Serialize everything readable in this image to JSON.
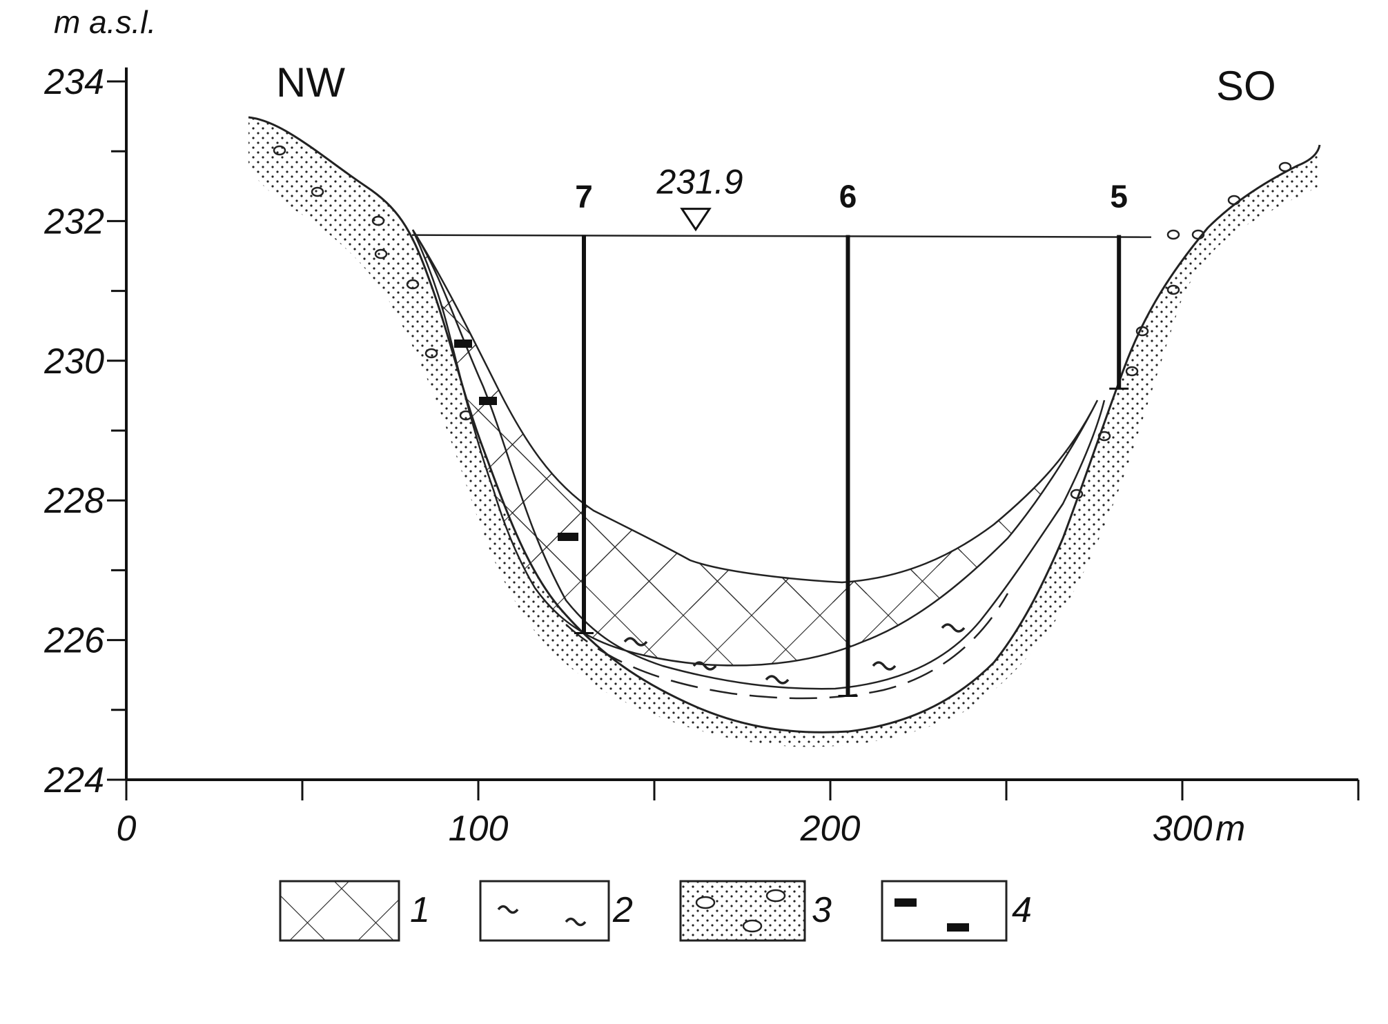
{
  "yaxis": {
    "unit_label": "m a.s.l.",
    "ticks": [
      "234",
      "232",
      "230",
      "228",
      "226",
      "224"
    ]
  },
  "xaxis": {
    "ticks": [
      "0",
      "100",
      "200",
      "300"
    ],
    "unit": "m"
  },
  "directions": {
    "left": "NW",
    "right": "SO"
  },
  "water_level": {
    "value": "231.9"
  },
  "boreholes": [
    {
      "label": "7",
      "x": 130,
      "top": 231.8,
      "bottom": 226.1
    },
    {
      "label": "6",
      "x": 205,
      "top": 231.8,
      "bottom": 225.2
    },
    {
      "label": "5",
      "x": 282,
      "top": 231.8,
      "bottom": 229.6
    }
  ],
  "legend": [
    {
      "num": "1",
      "pattern": "crosshatch"
    },
    {
      "num": "2",
      "pattern": "tilde"
    },
    {
      "num": "3",
      "pattern": "dotted-pebbles"
    },
    {
      "num": "4",
      "pattern": "dashes"
    }
  ]
}
